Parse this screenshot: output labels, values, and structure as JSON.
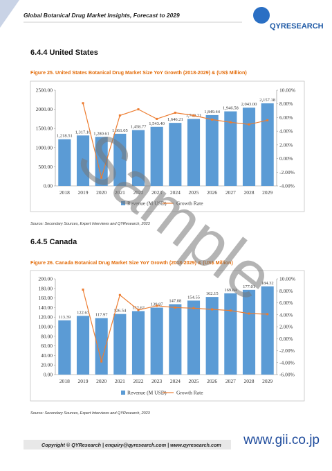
{
  "header": {
    "title": "Global Botanical Drug Market Insights, Forecast to 2029",
    "logo": "QYRESEARCH"
  },
  "sections": [
    {
      "heading": "6.4.4 United States",
      "figure": "Figure 25.   United States Botanical Drug Market Size YoY Growth (2018-2029) & (US$ Million)",
      "source": "Source: Secondary Sources, Expert Interviews and QYResearch, 2023"
    },
    {
      "heading": "6.4.5 Canada",
      "figure": "Figure 26.   Canada Botanical Drug Market Size YoY Growth (2018-2029) & (US$ Million)",
      "source": "Source: Secondary Sources, Expert Interviews and QYResearch, 2023"
    }
  ],
  "chart_data": [
    {
      "type": "bar",
      "categories": [
        "2018",
        "2019",
        "2020",
        "2021",
        "2022",
        "2023",
        "2024",
        "2025",
        "2026",
        "2027",
        "2028",
        "2029"
      ],
      "series": [
        {
          "name": "Revenue (M USD)",
          "color": "#5b9bd5",
          "values": [
            1218.51,
            1317.16,
            1280.61,
            1361.05,
            1458.77,
            1543.4,
            1646.21,
            1749.21,
            1849.44,
            1946.58,
            2043.0,
            2157.18
          ],
          "value_labels": [
            "1,218.51",
            "1,317.16",
            "1,280.61",
            "1,361.05",
            "1,458.77",
            "1,543.40",
            "1,646.21",
            "1,749.21",
            "1,849.44",
            "1,946.58",
            "2,043.00",
            "2,157.18"
          ]
        },
        {
          "name": "Growth Rate",
          "type": "line",
          "axis": "y2",
          "color": "#ed7d31",
          "values": [
            null,
            8.1,
            -2.8,
            6.3,
            7.2,
            5.8,
            6.7,
            6.3,
            5.7,
            5.3,
            5.0,
            5.6
          ]
        }
      ],
      "ylim": [
        0,
        2500
      ],
      "yticks": [
        {
          "value": 0,
          "label": "0.00"
        },
        {
          "value": 500,
          "label": "500.00"
        },
        {
          "value": 1000,
          "label": "1000.00"
        },
        {
          "value": 1500,
          "label": "1500.00"
        },
        {
          "value": 2000,
          "label": "2000.00"
        },
        {
          "value": 2500,
          "label": "2500.00"
        }
      ],
      "y2lim": [
        -4,
        10
      ],
      "y2ticks": [
        {
          "value": -4,
          "label": "-4.00%"
        },
        {
          "value": -2,
          "label": "-2.00%"
        },
        {
          "value": 0,
          "label": "0.00%"
        },
        {
          "value": 2,
          "label": "2.00%"
        },
        {
          "value": 4,
          "label": "4.00%"
        },
        {
          "value": 6,
          "label": "6.00%"
        },
        {
          "value": 8,
          "label": "8.00%"
        },
        {
          "value": 10,
          "label": "10.00%"
        }
      ]
    },
    {
      "type": "bar",
      "categories": [
        "2018",
        "2019",
        "2020",
        "2021",
        "2022",
        "2023",
        "2024",
        "2025",
        "2026",
        "2027",
        "2028",
        "2029"
      ],
      "series": [
        {
          "name": "Revenue (M USD)",
          "color": "#5b9bd5",
          "values": [
            113.39,
            122.67,
            117.97,
            126.54,
            132.62,
            139.87,
            147.08,
            154.55,
            162.15,
            169.84,
            177.01,
            184.32
          ],
          "value_labels": [
            "113.39",
            "122.67",
            "117.97",
            "126.54",
            "132.62",
            "139.87",
            "147.08",
            "154.55",
            "162.15",
            "169.84",
            "177.01",
            "184.32"
          ]
        },
        {
          "name": "Growth Rate",
          "type": "line",
          "axis": "y2",
          "color": "#ed7d31",
          "values": [
            null,
            8.2,
            -3.8,
            7.3,
            4.8,
            5.5,
            5.2,
            5.1,
            4.9,
            4.7,
            4.2,
            4.1
          ]
        }
      ],
      "ylim": [
        0,
        200
      ],
      "yticks": [
        {
          "value": 0,
          "label": "0.00"
        },
        {
          "value": 20,
          "label": "20.00"
        },
        {
          "value": 40,
          "label": "40.00"
        },
        {
          "value": 60,
          "label": "60.00"
        },
        {
          "value": 80,
          "label": "80.00"
        },
        {
          "value": 100,
          "label": "100.00"
        },
        {
          "value": 120,
          "label": "120.00"
        },
        {
          "value": 140,
          "label": "140.00"
        },
        {
          "value": 160,
          "label": "160.00"
        },
        {
          "value": 180,
          "label": "180.00"
        },
        {
          "value": 200,
          "label": "200.00"
        }
      ],
      "y2lim": [
        -6,
        10
      ],
      "y2ticks": [
        {
          "value": -6,
          "label": "-6.00%"
        },
        {
          "value": -4,
          "label": "-4.00%"
        },
        {
          "value": -2,
          "label": "-2.00%"
        },
        {
          "value": 0,
          "label": "0.00%"
        },
        {
          "value": 2,
          "label": "2.00%"
        },
        {
          "value": 4,
          "label": "4.00%"
        },
        {
          "value": 6,
          "label": "6.00%"
        },
        {
          "value": 8,
          "label": "8.00%"
        },
        {
          "value": 10,
          "label": "10.00%"
        }
      ]
    }
  ],
  "watermark": "Sample",
  "footer": {
    "copyright": "Copyright © QYResearch | enquiry@qyresearch.com | www.qyresearch.com",
    "site": "www.gii.co.jp"
  }
}
